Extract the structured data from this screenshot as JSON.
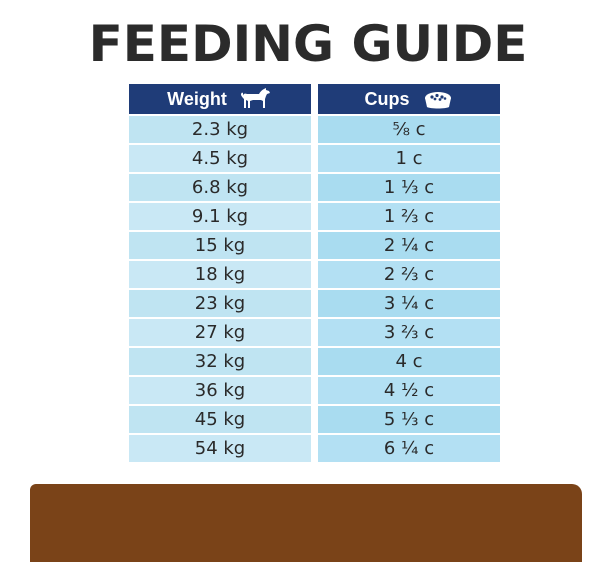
{
  "title": "FEEDING GUIDE",
  "headers": {
    "weight_label": "Weight",
    "weight_icon": "dog-icon",
    "cups_label": "Cups",
    "cups_icon": "food-bowl-icon"
  },
  "colors": {
    "header_bg": "#1f3c78",
    "weight_cell_bg": "#bfe4f2",
    "cups_cell_bg": "#a9dcf0",
    "brown_band": "#7a4318"
  },
  "rows": [
    {
      "weight": "2.3 kg",
      "cups": "⅝ c"
    },
    {
      "weight": "4.5 kg",
      "cups": "1 c"
    },
    {
      "weight": "6.8 kg",
      "cups": "1 ⅓ c"
    },
    {
      "weight": "9.1 kg",
      "cups": "1 ⅔ c"
    },
    {
      "weight": "15 kg",
      "cups": "2 ¼ c"
    },
    {
      "weight": "18 kg",
      "cups": "2 ⅔ c"
    },
    {
      "weight": "23 kg",
      "cups": "3 ¼ c"
    },
    {
      "weight": "27 kg",
      "cups": "3 ⅔ c"
    },
    {
      "weight": "32 kg",
      "cups": "4 c"
    },
    {
      "weight": "36 kg",
      "cups": "4 ½ c"
    },
    {
      "weight": "45 kg",
      "cups": "5 ⅓ c"
    },
    {
      "weight": "54 kg",
      "cups": "6 ¼ c"
    }
  ]
}
